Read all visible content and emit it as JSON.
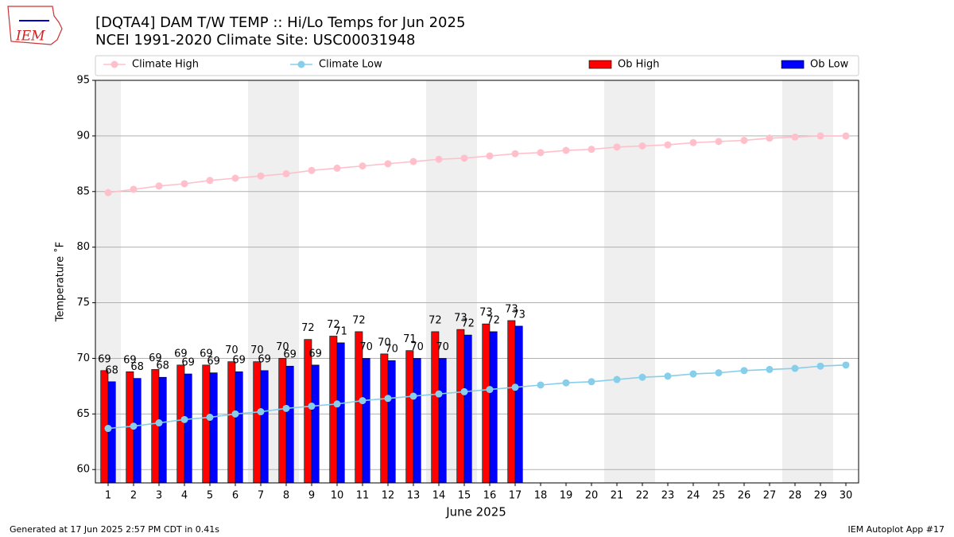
{
  "chart_data": {
    "type": "bar",
    "title": "[DQTA4] DAM T/W TEMP :: Hi/Lo Temps for Jun 2025",
    "subtitle": "NCEI 1991-2020 Climate Site: USC00031948",
    "logo": "IEM",
    "xlabel": "June 2025",
    "ylabel": "Temperature ˚F",
    "footer_left": "Generated at 17 Jun 2025 2:57 PM CDT in 0.41s",
    "footer_right": "IEM Autoplot App #17",
    "x": [
      1,
      2,
      3,
      4,
      5,
      6,
      7,
      8,
      9,
      10,
      11,
      12,
      13,
      14,
      15,
      16,
      17,
      18,
      19,
      20,
      21,
      22,
      23,
      24,
      25,
      26,
      27,
      28,
      29,
      30
    ],
    "xlim": [
      0.5,
      30.5
    ],
    "xticks": [
      1,
      2,
      3,
      4,
      5,
      6,
      7,
      8,
      9,
      10,
      11,
      12,
      13,
      14,
      15,
      16,
      17,
      18,
      19,
      20,
      21,
      22,
      23,
      24,
      25,
      26,
      27,
      28,
      29,
      30
    ],
    "ylim": [
      58.8,
      95
    ],
    "yticks": [
      60,
      65,
      70,
      75,
      80,
      85,
      90,
      95
    ],
    "grid": true,
    "legend": "top",
    "shaded": [
      [
        0.5,
        1.5
      ],
      [
        6.5,
        8.5
      ],
      [
        13.5,
        15.5
      ],
      [
        20.5,
        22.5
      ],
      [
        27.5,
        29.5
      ]
    ],
    "shade_color": "#efefef",
    "series": [
      {
        "name": "Climate High",
        "type": "line",
        "color": "#ffc0cb",
        "values": [
          84.9,
          85.2,
          85.5,
          85.7,
          86.0,
          86.2,
          86.4,
          86.6,
          86.9,
          87.1,
          87.3,
          87.5,
          87.7,
          87.9,
          88.0,
          88.2,
          88.4,
          88.5,
          88.7,
          88.8,
          89.0,
          89.1,
          89.2,
          89.4,
          89.5,
          89.6,
          89.8,
          89.9,
          90.0,
          90.0
        ]
      },
      {
        "name": "Climate Low",
        "type": "line",
        "color": "#87ceeb",
        "values": [
          63.7,
          63.9,
          64.2,
          64.5,
          64.7,
          65.0,
          65.2,
          65.5,
          65.7,
          65.9,
          66.2,
          66.4,
          66.6,
          66.8,
          67.0,
          67.2,
          67.4,
          67.6,
          67.8,
          67.9,
          68.1,
          68.3,
          68.4,
          68.6,
          68.7,
          68.9,
          69.0,
          69.1,
          69.3,
          69.4
        ]
      },
      {
        "name": "Ob High",
        "type": "bar",
        "color": "#ff0000",
        "values": [
          68.9,
          68.8,
          69.0,
          69.4,
          69.4,
          69.7,
          69.7,
          70.0,
          71.7,
          72.0,
          72.4,
          70.4,
          70.7,
          72.4,
          72.6,
          73.1,
          73.4,
          null,
          null,
          null,
          null,
          null,
          null,
          null,
          null,
          null,
          null,
          null,
          null,
          null
        ],
        "value_labels": [
          "69",
          "69",
          "69",
          "69",
          "69",
          "70",
          "70",
          "70",
          "72",
          "72",
          "72",
          "70",
          "71",
          "72",
          "73",
          "73",
          "73",
          null,
          null,
          null,
          null,
          null,
          null,
          null,
          null,
          null,
          null,
          null,
          null,
          null
        ]
      },
      {
        "name": "Ob Low",
        "type": "bar",
        "color": "#0000ff",
        "values": [
          67.9,
          68.2,
          68.3,
          68.6,
          68.7,
          68.8,
          68.9,
          69.3,
          69.4,
          71.4,
          70.0,
          69.8,
          70.0,
          70.0,
          72.1,
          72.4,
          72.9,
          null,
          null,
          null,
          null,
          null,
          null,
          null,
          null,
          null,
          null,
          null,
          null,
          null
        ],
        "value_labels": [
          "68",
          "68",
          "68",
          "69",
          "69",
          "69",
          "69",
          "69",
          "69",
          "71",
          "70",
          "70",
          "70",
          "70",
          "72",
          "72",
          "73",
          null,
          null,
          null,
          null,
          null,
          null,
          null,
          null,
          null,
          null,
          null,
          null,
          null
        ]
      }
    ]
  }
}
